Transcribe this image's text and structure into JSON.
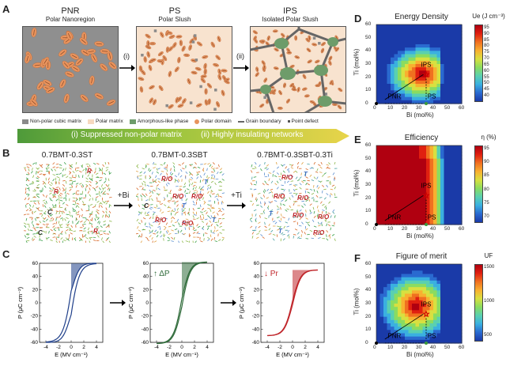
{
  "panelA": {
    "label": "A",
    "stages": [
      {
        "title": "PNR",
        "subtitle": "Polar Nanoregion"
      },
      {
        "title": "PS",
        "subtitle": "Polar Slush"
      },
      {
        "title": "IPS",
        "subtitle": "Isolated Polar Slush"
      }
    ],
    "arrow1": "(i)",
    "arrow2": "(ii)",
    "legend": [
      {
        "label": "Non-polar cubic matrix",
        "color": "#8a8a8a"
      },
      {
        "label": "Polar matrix",
        "color": "#f6d9c0"
      },
      {
        "label": "Amorphous-like phase",
        "color": "#6e9c6a"
      },
      {
        "label": "Polar domain",
        "color": "#e8945e"
      },
      {
        "label": "Grain boundary",
        "color": "#666666"
      },
      {
        "label": "Point defect",
        "color": "#555555"
      }
    ],
    "banner_left": "(i) Suppressed non-polar matrix",
    "banner_right": "(ii) Highly insulating networks"
  },
  "panelB": {
    "label": "B",
    "titles": [
      "0.7BMT-0.3ST",
      "0.7BMT-0.3SBT",
      "0.7BMT-0.3SBT-0.3Ti"
    ],
    "arrow1": "+Bi",
    "arrow2": "+Ti",
    "letters": [
      "R",
      "C",
      "T",
      "R/O"
    ]
  },
  "panelC": {
    "label": "C",
    "ylabel": "P (μC cm⁻²)",
    "xlabel": "E (MV cm⁻¹)",
    "yticks": [
      "60",
      "40",
      "20",
      "0",
      "-20",
      "-40",
      "-60"
    ],
    "xticks": [
      "-4",
      "-2",
      "0",
      "2",
      "4"
    ],
    "annot_mid": "↑ ΔP",
    "annot_right": "↓ Pr",
    "colors": {
      "blue": "#1f3f8a",
      "green": "#2f6b3a",
      "red": "#c0262b"
    }
  },
  "maps": [
    {
      "label": "D",
      "title": "Energy Density",
      "cbar_title": "Ue (J cm⁻³)",
      "cbar_ticks": [
        "95",
        "90",
        "85",
        "80",
        "75",
        "70",
        "65",
        "60",
        "55",
        "50",
        "45",
        "40"
      ]
    },
    {
      "label": "E",
      "title": "Efficiency",
      "cbar_title": "η (%)",
      "cbar_ticks": [
        "95",
        "90",
        "85",
        "80",
        "75",
        "70"
      ]
    },
    {
      "label": "F",
      "title": "Figure of merit",
      "cbar_title": "UF",
      "cbar_ticks": [
        "1500",
        "1000",
        "500"
      ]
    }
  ],
  "mapAxes": {
    "ylabel": "Ti (mol%)",
    "xlabel": "Bi (mol%)",
    "yticks": [
      "60",
      "50",
      "40",
      "30",
      "20",
      "10",
      "0"
    ],
    "xticks": [
      "0",
      "10",
      "20",
      "30",
      "40",
      "50",
      "60"
    ],
    "labels": {
      "ips": "IPS",
      "pnr": "PNR",
      "ps": "PS"
    }
  }
}
